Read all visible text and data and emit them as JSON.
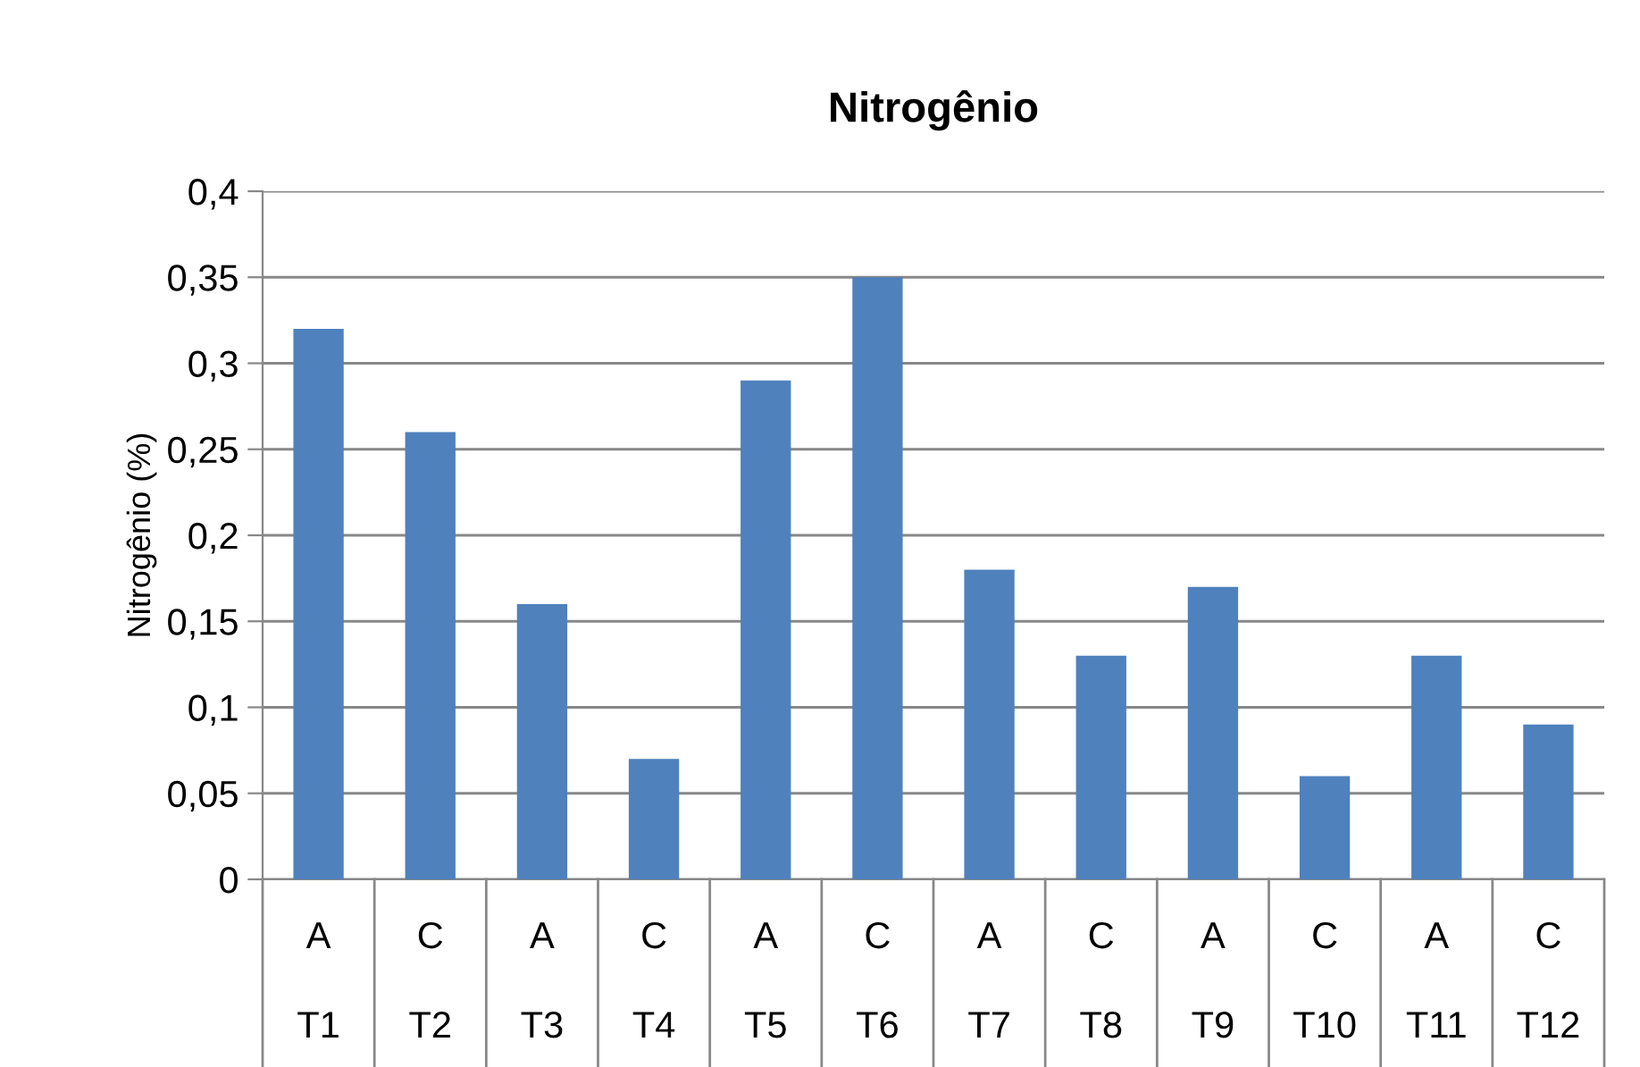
{
  "chart_data": {
    "type": "bar",
    "title": "Nitrogênio",
    "ylabel": "Nitrogênio (%)",
    "categories": [
      "A\nT1",
      "C\nT2",
      "A\nT3",
      "C\nT4",
      "A\nT5",
      "C\nT6",
      "A\nT7",
      "C\nT8",
      "A\nT9",
      "C\nT10",
      "A\nT11",
      "C\nT12"
    ],
    "values": [
      0.32,
      0.26,
      0.16,
      0.07,
      0.29,
      0.35,
      0.18,
      0.13,
      0.17,
      0.06,
      0.13,
      0.09
    ],
    "color": "#4f81bd",
    "ylim": [
      0,
      0.4
    ],
    "yticks": [
      {
        "value": 0,
        "label": "0"
      },
      {
        "value": 0.05,
        "label": "0,05"
      },
      {
        "value": 0.1,
        "label": "0,1"
      },
      {
        "value": 0.15,
        "label": "0,15"
      },
      {
        "value": 0.2,
        "label": "0,2"
      },
      {
        "value": 0.25,
        "label": "0,25"
      },
      {
        "value": 0.3,
        "label": "0,3"
      },
      {
        "value": 0.35,
        "label": "0,35"
      },
      {
        "value": 0.4,
        "label": "0,4"
      }
    ],
    "grid": "y",
    "legend": false
  }
}
